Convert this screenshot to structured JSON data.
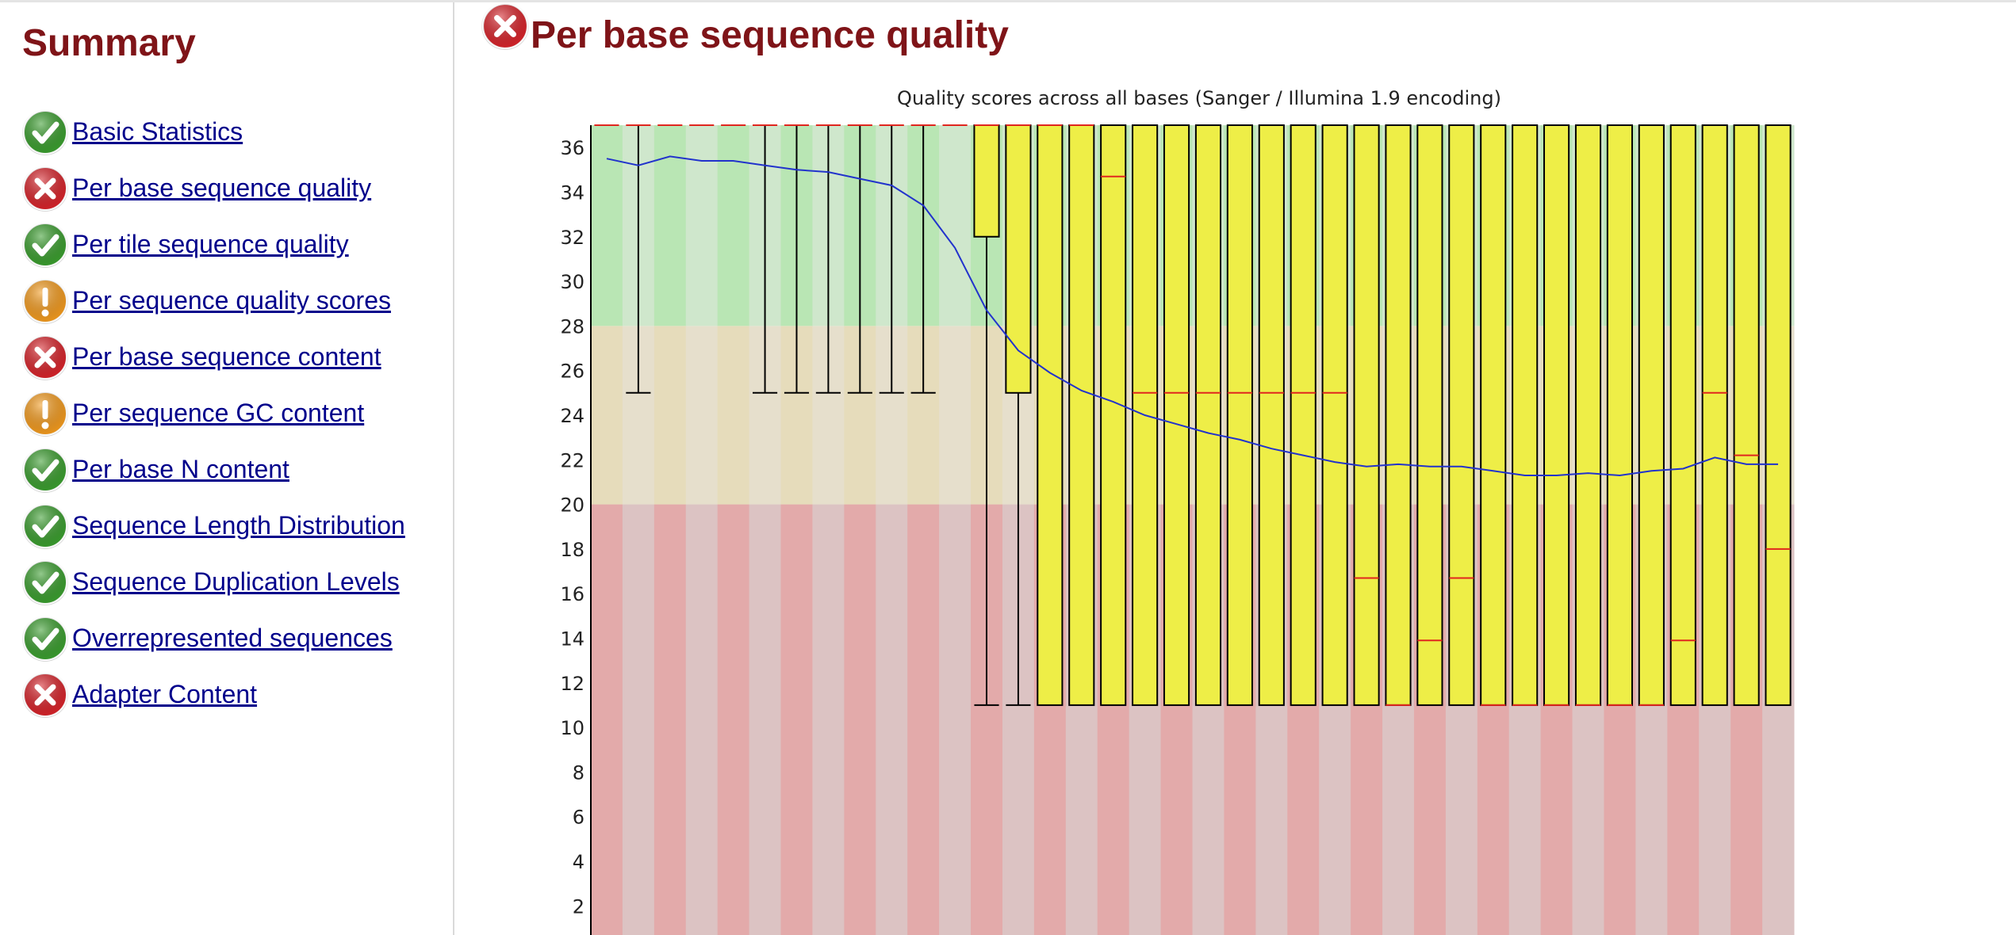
{
  "sidebar": {
    "title": "Summary",
    "items": [
      {
        "label": "Basic Statistics",
        "status": "pass"
      },
      {
        "label": "Per base sequence quality",
        "status": "fail"
      },
      {
        "label": "Per tile sequence quality",
        "status": "pass"
      },
      {
        "label": "Per sequence quality scores",
        "status": "warn"
      },
      {
        "label": "Per base sequence content",
        "status": "fail"
      },
      {
        "label": "Per sequence GC content",
        "status": "warn"
      },
      {
        "label": "Per base N content",
        "status": "pass"
      },
      {
        "label": "Sequence Length Distribution",
        "status": "pass"
      },
      {
        "label": "Sequence Duplication Levels",
        "status": "pass"
      },
      {
        "label": "Overrepresented sequences",
        "status": "pass"
      },
      {
        "label": "Adapter Content",
        "status": "fail"
      }
    ]
  },
  "main": {
    "title": "Per base sequence quality",
    "status": "fail"
  },
  "colors": {
    "title": "#7f1418",
    "link": "#00008b",
    "pass": "#3a9d2e",
    "warn": "#f29a1e",
    "fail": "#d6232a",
    "box": "#eeee47",
    "median": "#e0261f",
    "mean": "#2233cc",
    "zone_good": "#b9e6b4",
    "zone_ok": "#e6dcbb",
    "zone_bad": "#e3aaaa"
  },
  "chart_data": {
    "type": "boxplot",
    "title": "Quality scores across all bases (Sanger / Illumina 1.9 encoding)",
    "ylim": [
      0,
      37
    ],
    "y_ticks": [
      2,
      4,
      6,
      8,
      10,
      12,
      14,
      16,
      18,
      20,
      22,
      24,
      26,
      28,
      30,
      32,
      34,
      36
    ],
    "zones": [
      {
        "from": 0,
        "to": 20,
        "quality": "poor"
      },
      {
        "from": 20,
        "to": 28,
        "quality": "reasonable"
      },
      {
        "from": 28,
        "to": 37,
        "quality": "good"
      }
    ],
    "positions": 38,
    "q1": [
      37,
      37,
      37,
      37,
      37,
      37,
      37,
      37,
      37,
      37,
      37,
      37,
      32,
      25,
      11,
      11,
      11,
      11,
      11,
      11,
      11,
      11,
      11,
      11,
      11,
      11,
      11,
      11,
      11,
      11,
      11,
      11,
      11,
      11,
      11,
      11,
      11,
      11
    ],
    "q3": [
      37,
      37,
      37,
      37,
      37,
      37,
      37,
      37,
      37,
      37,
      37,
      37,
      37,
      37,
      37,
      37,
      37,
      37,
      37,
      37,
      37,
      37,
      37,
      37,
      37,
      37,
      37,
      37,
      37,
      37,
      37,
      37,
      37,
      37,
      37,
      37,
      37,
      37
    ],
    "median": [
      37,
      37,
      37,
      37,
      37,
      37,
      37,
      37,
      37,
      37,
      37,
      37,
      37,
      37,
      37,
      37,
      34.7,
      25,
      25,
      25,
      25,
      25,
      25,
      25,
      16.7,
      11,
      13.9,
      16.7,
      11,
      11,
      11,
      11,
      11,
      11,
      13.9,
      25,
      22.2,
      18
    ],
    "lower_whisker": [
      37,
      25,
      37,
      37,
      37,
      25,
      25,
      25,
      25,
      25,
      25,
      37,
      11,
      11,
      11,
      11,
      11,
      11,
      11,
      11,
      11,
      11,
      11,
      11,
      11,
      11,
      11,
      11,
      11,
      11,
      11,
      11,
      11,
      11,
      11,
      11,
      11,
      11
    ],
    "upper_whisker": [
      37,
      37,
      37,
      37,
      37,
      37,
      37,
      37,
      37,
      37,
      37,
      37,
      37,
      37,
      37,
      37,
      37,
      37,
      37,
      37,
      37,
      37,
      37,
      37,
      37,
      37,
      37,
      37,
      37,
      37,
      37,
      37,
      37,
      37,
      37,
      37,
      37,
      37
    ],
    "mean": [
      35.5,
      35.2,
      35.6,
      35.4,
      35.4,
      35.2,
      35.0,
      34.9,
      34.6,
      34.3,
      33.4,
      31.5,
      28.7,
      26.9,
      25.9,
      25.1,
      24.6,
      24.0,
      23.6,
      23.2,
      22.9,
      22.5,
      22.2,
      21.9,
      21.7,
      21.8,
      21.7,
      21.7,
      21.5,
      21.3,
      21.3,
      21.4,
      21.3,
      21.5,
      21.6,
      22.1,
      21.8,
      21.8
    ]
  }
}
